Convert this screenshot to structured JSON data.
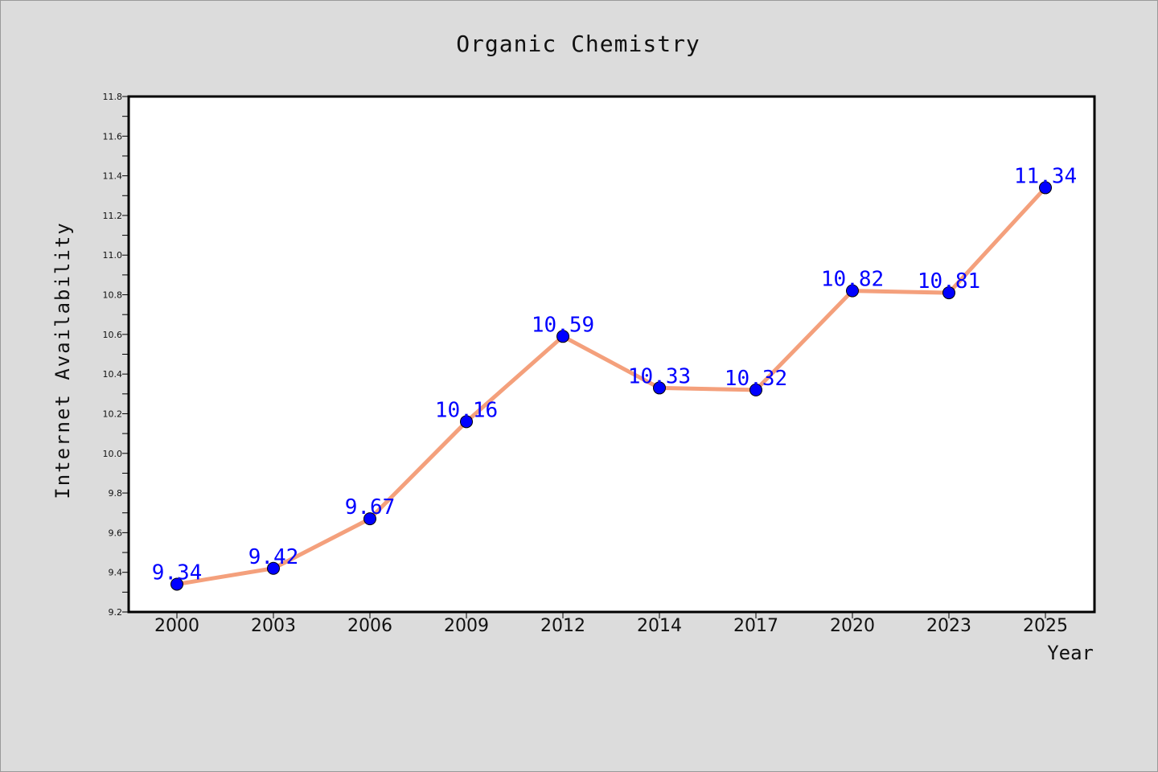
{
  "chart_data": {
    "type": "line",
    "title": "Organic Chemistry",
    "xlabel": "Year",
    "ylabel": "Internet Availability",
    "categories": [
      "2000",
      "2003",
      "2006",
      "2009",
      "2012",
      "2014",
      "2017",
      "2020",
      "2023",
      "2025"
    ],
    "series": [
      {
        "values": [
          9.34,
          9.42,
          9.67,
          10.16,
          10.59,
          10.33,
          10.32,
          10.82,
          10.81,
          11.34
        ],
        "line_color": "#f4a07c",
        "marker_color": "#0000ff"
      }
    ],
    "data_labels": [
      "9.34",
      "9.42",
      "9.67",
      "10.16",
      "10.59",
      "10.33",
      "10.32",
      "10.82",
      "10.81",
      "11.34"
    ],
    "ylim": [
      9.2,
      11.8
    ],
    "yticks": [
      "9.2",
      "9.4",
      "9.6",
      "9.8",
      "10.0",
      "10.2",
      "10.4",
      "10.6",
      "10.8",
      "11.0",
      "11.2",
      "11.4",
      "11.6",
      "11.8"
    ],
    "grid": false,
    "legend": "none",
    "colors": {
      "background": "#dcdcdc",
      "plot_background": "#ffffff",
      "label": "#0000ff",
      "text": "#111111"
    }
  }
}
